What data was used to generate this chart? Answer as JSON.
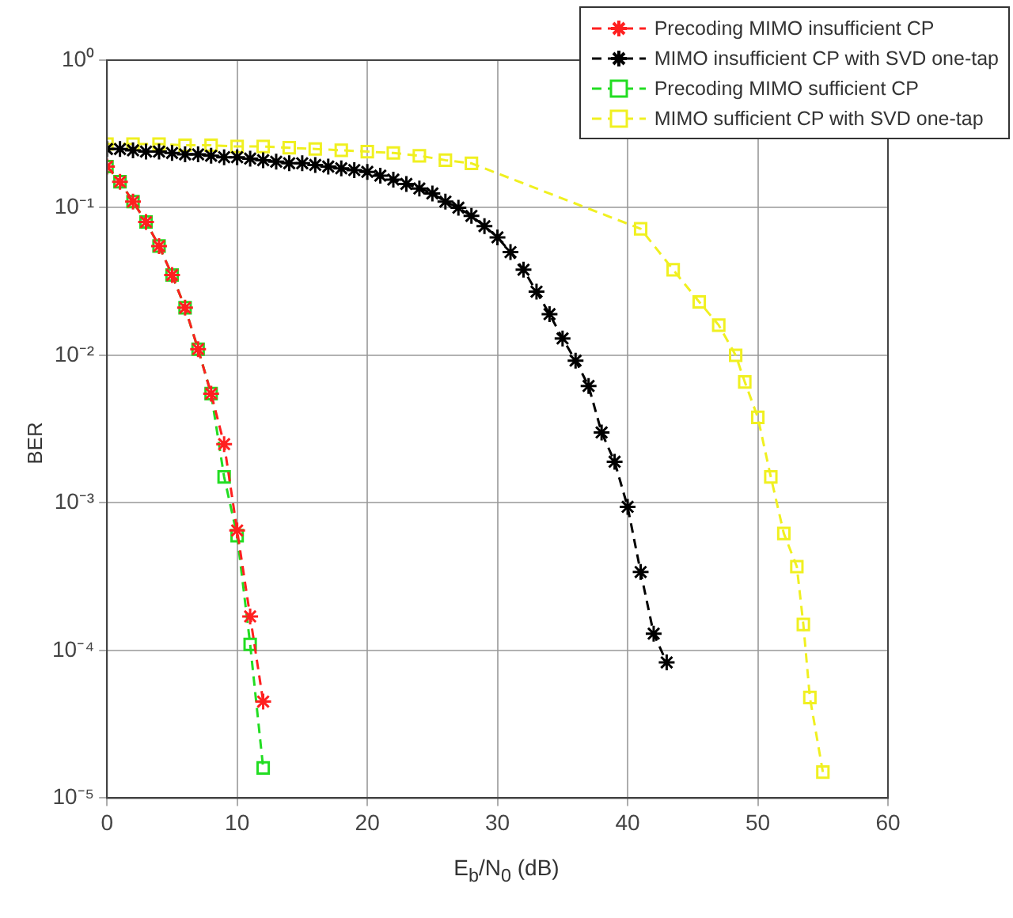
{
  "chart_data": {
    "type": "line",
    "xlabel": "E$_{b}$/N$_{0}$ (dB)",
    "ylabel": "BER",
    "xlim": [
      0,
      60
    ],
    "xticks": [
      0,
      10,
      20,
      30,
      40,
      50,
      60
    ],
    "ylim": [
      1e-05,
      1
    ],
    "log": "y",
    "yticks": [
      {
        "value": 1,
        "label": "10⁰"
      },
      {
        "value": 0.1,
        "label": "10⁻¹"
      },
      {
        "value": 0.01,
        "label": "10⁻²"
      },
      {
        "value": 0.001,
        "label": "10⁻³"
      },
      {
        "value": 0.0001,
        "label": "10⁻⁴"
      },
      {
        "value": 1e-05,
        "label": "10⁻⁵"
      }
    ],
    "grid": true,
    "legend": "top right",
    "line_style": "dashed",
    "series": [
      {
        "name": "Precoding MIMO insufficient CP",
        "color": "#ff2020",
        "marker": "cross",
        "x": [
          0,
          1,
          2,
          3,
          4,
          5,
          6,
          7,
          8,
          9,
          10,
          11,
          12
        ],
        "values": [
          0.19,
          0.15,
          0.11,
          0.08,
          0.055,
          0.035,
          0.021,
          0.011,
          0.0055,
          0.0025,
          0.00065,
          0.00017,
          4.5e-05
        ]
      },
      {
        "name": "MIMO insufficient CP with SVD one-tap",
        "color": "#000000",
        "marker": "cross",
        "x": [
          0,
          1,
          2,
          3,
          4,
          5,
          6,
          7,
          8,
          9,
          10,
          11,
          12,
          13,
          14,
          15,
          16,
          17,
          18,
          19,
          20,
          21,
          22,
          23,
          24,
          25,
          26,
          27,
          28,
          29,
          30,
          31,
          32,
          33,
          34,
          35,
          36,
          37,
          38,
          39,
          40,
          41,
          42,
          43
        ],
        "values": [
          0.25,
          0.25,
          0.245,
          0.24,
          0.24,
          0.235,
          0.23,
          0.23,
          0.225,
          0.22,
          0.22,
          0.215,
          0.21,
          0.205,
          0.2,
          0.2,
          0.195,
          0.19,
          0.185,
          0.18,
          0.175,
          0.165,
          0.155,
          0.145,
          0.135,
          0.125,
          0.11,
          0.1,
          0.088,
          0.075,
          0.063,
          0.05,
          0.038,
          0.027,
          0.019,
          0.013,
          0.0092,
          0.0062,
          0.003,
          0.0019,
          0.00094,
          0.00034,
          0.00013,
          8.3e-05
        ]
      },
      {
        "name": "Precoding MIMO sufficient CP",
        "color": "#22dd22",
        "marker": "square",
        "x": [
          0,
          1,
          2,
          3,
          4,
          5,
          6,
          7,
          8,
          9,
          10,
          11,
          12
        ],
        "values": [
          0.19,
          0.15,
          0.11,
          0.08,
          0.055,
          0.035,
          0.021,
          0.011,
          0.0055,
          0.0015,
          0.0006,
          0.00011,
          1.6e-05
        ]
      },
      {
        "name": "MIMO sufficient CP with SVD one-tap",
        "color": "#f0f020",
        "marker": "square",
        "x": [
          0,
          2,
          4,
          6,
          8,
          10,
          12,
          14,
          16,
          18,
          20,
          22,
          24,
          26,
          28,
          41,
          43.5,
          45.5,
          47,
          48.3,
          49,
          50,
          51,
          52,
          53,
          53.5,
          54,
          55
        ],
        "values": [
          0.27,
          0.27,
          0.27,
          0.265,
          0.265,
          0.26,
          0.26,
          0.255,
          0.25,
          0.245,
          0.24,
          0.235,
          0.225,
          0.21,
          0.2,
          0.072,
          0.038,
          0.023,
          0.016,
          0.01,
          0.0066,
          0.0038,
          0.0015,
          0.00062,
          0.00037,
          0.00015,
          4.8e-05,
          1.5e-05
        ]
      }
    ]
  }
}
